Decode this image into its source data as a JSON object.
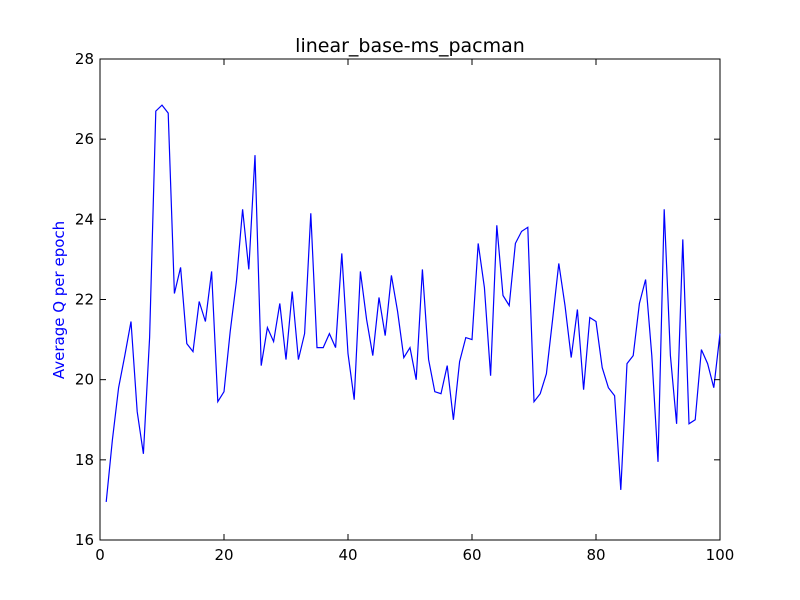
{
  "chart_data": {
    "type": "line",
    "title": "linear_base-ms_pacman",
    "xlabel": "",
    "ylabel": "Average Q per epoch",
    "xlim": [
      0,
      100
    ],
    "ylim": [
      16,
      28
    ],
    "x_ticks": [
      "0",
      "20",
      "40",
      "60",
      "80",
      "100"
    ],
    "y_ticks": [
      "16",
      "18",
      "20",
      "22",
      "24",
      "26",
      "28"
    ],
    "grid": false,
    "legend": "none",
    "colors": {
      "line": "#0000ff",
      "ylabel": "#0000ff",
      "axes": "#000000"
    },
    "series": [
      {
        "x": [
          1,
          2,
          3,
          4,
          5,
          6,
          7,
          8,
          9,
          10,
          11,
          12,
          13,
          14,
          15,
          16,
          17,
          18,
          19,
          20,
          21,
          22,
          23,
          24,
          25,
          26,
          27,
          28,
          29,
          30,
          31,
          32,
          33,
          34,
          35,
          36,
          37,
          38,
          39,
          40,
          41,
          42,
          43,
          44,
          45,
          46,
          47,
          48,
          49,
          50,
          51,
          52,
          53,
          54,
          55,
          56,
          57,
          58,
          59,
          60,
          61,
          62,
          63,
          64,
          65,
          66,
          67,
          68,
          69,
          70,
          71,
          72,
          73,
          74,
          75,
          76,
          77,
          78,
          79,
          80,
          81,
          82,
          83,
          84,
          85,
          86,
          87,
          88,
          89,
          90,
          91,
          92,
          93,
          94,
          95,
          96,
          97,
          98,
          99,
          100
        ],
        "values": [
          16.95,
          18.5,
          19.8,
          20.6,
          21.45,
          19.2,
          18.15,
          21.05,
          26.7,
          26.85,
          26.65,
          22.15,
          22.8,
          20.9,
          20.7,
          21.95,
          21.45,
          22.7,
          19.45,
          19.7,
          21.2,
          22.45,
          24.25,
          22.75,
          25.6,
          20.35,
          21.3,
          20.95,
          21.9,
          20.5,
          22.2,
          20.5,
          21.15,
          24.15,
          20.8,
          20.8,
          21.15,
          20.8,
          23.15,
          20.65,
          19.5,
          22.7,
          21.5,
          20.6,
          22.05,
          21.1,
          22.6,
          21.7,
          20.55,
          20.8,
          20.0,
          22.75,
          20.5,
          19.7,
          19.65,
          20.35,
          19.0,
          20.45,
          21.05,
          21.0,
          23.4,
          22.3,
          20.1,
          23.85,
          22.1,
          21.85,
          23.4,
          23.7,
          23.8,
          19.45,
          19.65,
          20.15,
          21.5,
          22.9,
          21.85,
          20.55,
          21.75,
          19.75,
          21.55,
          21.45,
          20.3,
          19.8,
          19.6,
          17.25,
          20.4,
          20.6,
          21.9,
          22.5,
          20.6,
          17.95,
          24.25,
          20.6,
          18.9,
          23.5,
          18.9,
          19.0,
          20.75,
          20.4,
          19.8,
          21.15
        ]
      }
    ]
  }
}
